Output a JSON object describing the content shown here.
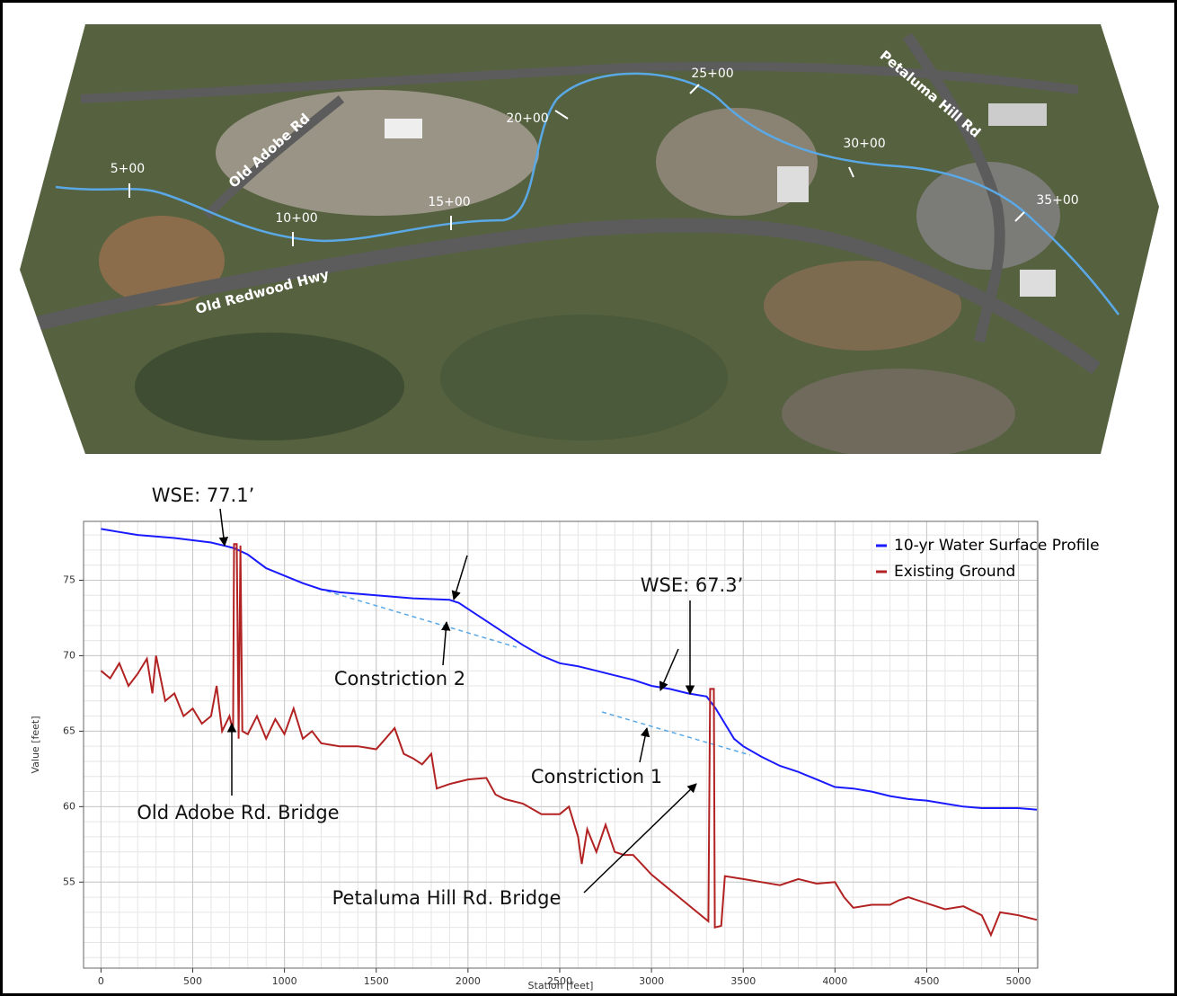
{
  "map": {
    "stations": [
      "5+00",
      "10+00",
      "15+00",
      "20+00",
      "25+00",
      "30+00",
      "35+00"
    ],
    "roads": [
      "Old Adobe Rd",
      "Old Redwood Hwy",
      "Petaluma Hill Rd"
    ]
  },
  "chart_data": {
    "type": "line",
    "x_label": "Station [feet]",
    "y_label": "Value [feet]",
    "xlim": [
      -95,
      5105
    ],
    "ylim": [
      49.3,
      78.9
    ],
    "xticks": [
      0,
      500,
      1000,
      1500,
      2000,
      2500,
      3000,
      3500,
      4000,
      4500,
      5000
    ],
    "yticks": [
      55,
      60,
      65,
      70,
      75
    ],
    "grid": true,
    "legend": "top-right",
    "annotations": [
      "WSE: 77.1’",
      "Constriction 2",
      "WSE: 67.3’",
      "Constriction 1",
      "Old Adobe Rd. Bridge",
      "Petaluma Hill Rd. Bridge"
    ],
    "series": [
      {
        "name": "10-yr Water Surface Profile",
        "color": "#1a1aff",
        "x": [
          0,
          100,
          200,
          400,
          600,
          700,
          730,
          800,
          900,
          1000,
          1100,
          1200,
          1300,
          1500,
          1700,
          1900,
          1950,
          2000,
          2100,
          2200,
          2300,
          2400,
          2500,
          2600,
          2700,
          2800,
          2900,
          3000,
          3100,
          3200,
          3300,
          3350,
          3400,
          3450,
          3500,
          3600,
          3700,
          3800,
          3900,
          4000,
          4100,
          4200,
          4300,
          4400,
          4500,
          4600,
          4700,
          4800,
          5000,
          5100
        ],
        "values": [
          78.4,
          78.2,
          78.0,
          77.8,
          77.5,
          77.2,
          77.1,
          76.7,
          75.8,
          75.3,
          74.8,
          74.4,
          74.2,
          74.0,
          73.8,
          73.7,
          73.5,
          73.1,
          72.3,
          71.5,
          70.7,
          70.0,
          69.5,
          69.3,
          69.0,
          68.7,
          68.4,
          68.0,
          67.8,
          67.5,
          67.3,
          66.5,
          65.5,
          64.5,
          64.0,
          63.3,
          62.7,
          62.3,
          61.8,
          61.3,
          61.2,
          61.0,
          60.7,
          60.5,
          60.4,
          60.2,
          60.0,
          59.9,
          59.9,
          59.8
        ]
      },
      {
        "name": "Existing Ground",
        "color": "#b22222",
        "x": [
          0,
          50,
          100,
          150,
          200,
          250,
          280,
          300,
          350,
          400,
          450,
          500,
          550,
          600,
          630,
          660,
          700,
          720,
          725,
          740,
          750,
          760,
          770,
          800,
          850,
          900,
          950,
          1000,
          1050,
          1100,
          1150,
          1200,
          1300,
          1400,
          1500,
          1550,
          1600,
          1650,
          1700,
          1750,
          1800,
          1830,
          1900,
          2000,
          2100,
          2150,
          2200,
          2300,
          2400,
          2500,
          2550,
          2600,
          2620,
          2650,
          2700,
          2750,
          2800,
          2850,
          2900,
          3000,
          3100,
          3200,
          3310,
          3320,
          3340,
          3345,
          3380,
          3400,
          3500,
          3600,
          3700,
          3800,
          3900,
          4000,
          4050,
          4100,
          4200,
          4300,
          4350,
          4400,
          4500,
          4600,
          4700,
          4800,
          4850,
          4900,
          5000,
          5100
        ],
        "values": [
          69,
          68.5,
          69.5,
          68,
          68.8,
          69.8,
          67.5,
          70,
          67,
          67.5,
          66,
          66.5,
          65.5,
          66,
          68,
          65,
          66,
          65,
          77.4,
          77.4,
          64.5,
          77.3,
          65,
          64.8,
          66,
          64.5,
          65.8,
          64.8,
          66.5,
          64.5,
          65,
          64.2,
          64,
          64,
          63.8,
          64.5,
          65.2,
          63.5,
          63.2,
          62.8,
          63.5,
          61.2,
          61.5,
          61.8,
          61.9,
          60.8,
          60.5,
          60.2,
          59.5,
          59.5,
          60,
          58,
          56.2,
          58.5,
          57,
          58.8,
          57,
          56.8,
          56.8,
          55.5,
          54.5,
          53.5,
          52.4,
          67.8,
          67.8,
          52,
          52.1,
          55.4,
          55.2,
          55,
          54.8,
          55.2,
          54.9,
          55,
          54,
          53.3,
          53.5,
          53.5,
          53.8,
          54,
          53.6,
          53.2,
          53.4,
          52.8,
          51.5,
          53,
          52.8,
          52.5
        ]
      }
    ]
  }
}
